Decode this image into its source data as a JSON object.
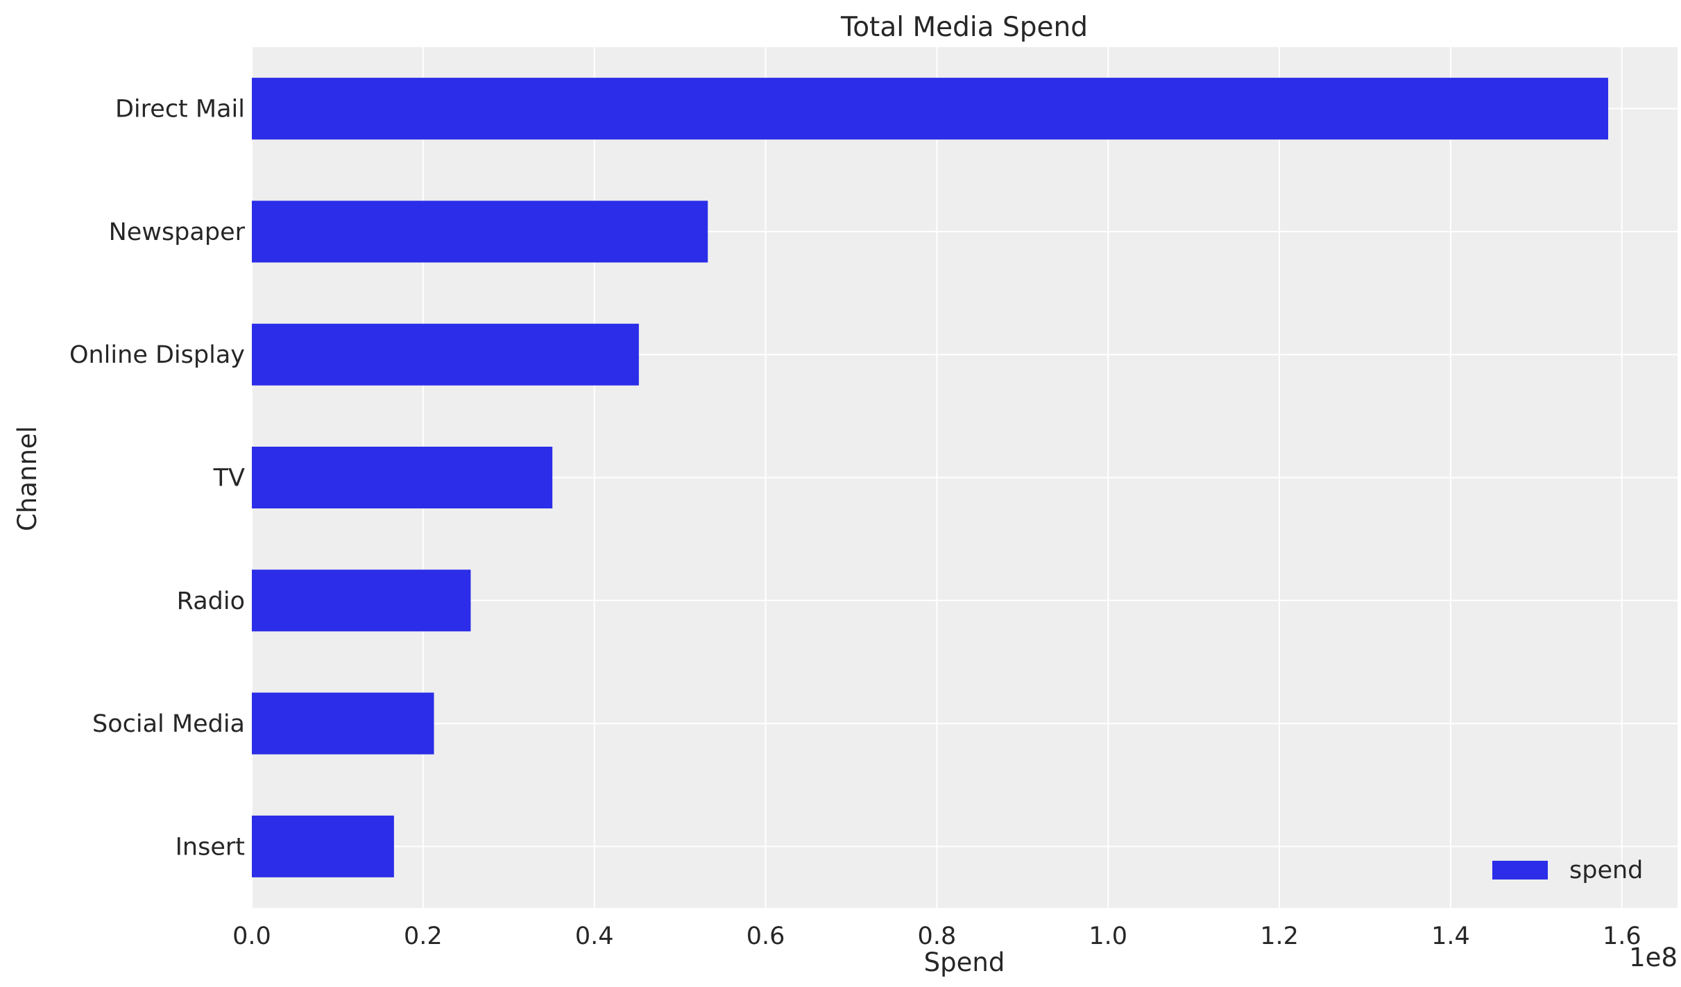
{
  "chart_data": {
    "type": "bar",
    "orientation": "horizontal",
    "title": "Total Media Spend",
    "xlabel": "Spend",
    "ylabel": "Channel",
    "x_offset_label": "1e8",
    "categories": [
      "Direct Mail",
      "Newspaper",
      "Online Display",
      "TV",
      "Radio",
      "Social Media",
      "Insert"
    ],
    "series": [
      {
        "name": "spend",
        "values": [
          158400000,
          53250000,
          45200000,
          35100000,
          25560000,
          21270000,
          16600000
        ]
      }
    ],
    "xlim": [
      0,
      166500000
    ],
    "xticks": [
      0,
      20000000,
      40000000,
      60000000,
      80000000,
      100000000,
      120000000,
      140000000,
      160000000
    ],
    "xtick_labels": [
      "0.0",
      "0.2",
      "0.4",
      "0.6",
      "0.8",
      "1.0",
      "1.2",
      "1.4",
      "1.6"
    ],
    "grid": true,
    "legend": {
      "position": "bottom-right",
      "entries": [
        "spend"
      ]
    },
    "colors": {
      "bar": "#2b2de8",
      "background": "#eeeeee",
      "grid": "#ffffff"
    }
  }
}
